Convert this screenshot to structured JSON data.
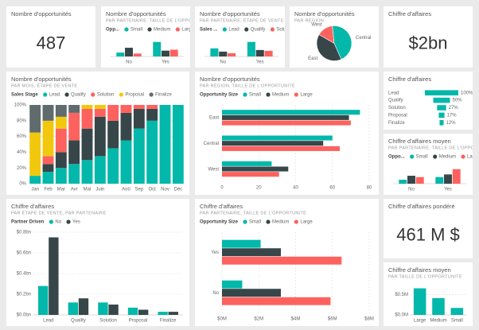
{
  "chart_data": [
    {
      "type": "card",
      "title": "Nombre d'opportunités",
      "value": 487
    },
    {
      "type": "bar",
      "title": "Nombre d'opportunités",
      "subtitle": "PAR PARTENAIRE, TAILLE DE L'OPPORTUNITÉ",
      "legend_title": "Opp...",
      "categories": [
        "No",
        "Yes"
      ],
      "series": [
        {
          "name": "Small",
          "color": "#01b8aa",
          "values": [
            8,
            30
          ]
        },
        {
          "name": "Medium",
          "color": "#374649",
          "values": [
            18,
            12
          ]
        },
        {
          "name": "Large",
          "color": "#fd625e",
          "values": [
            6,
            14
          ]
        }
      ]
    },
    {
      "type": "bar",
      "title": "Nombre d'opportunités",
      "subtitle": "PAR PARTENAIRE, ÉTAPE DE VENTE",
      "legend_title": "Sales ...",
      "categories": [
        "No",
        "Yes"
      ],
      "series": [
        {
          "name": "Lead",
          "color": "#01b8aa",
          "values": [
            10,
            18
          ]
        },
        {
          "name": "Qualify",
          "color": "#374649",
          "values": [
            6,
            8
          ]
        },
        {
          "name": "Solution",
          "color": "#fd625e",
          "values": [
            4,
            7
          ]
        }
      ]
    },
    {
      "type": "pie",
      "title": "Nombre d'opportunités",
      "subtitle": "PAR RÉGION",
      "categories": [
        "West",
        "Central",
        "East"
      ],
      "values": [
        15,
        45,
        40
      ],
      "colors": [
        "#fd625e",
        "#01b8aa",
        "#374649"
      ]
    },
    {
      "type": "card",
      "title": "Chiffre d'affaires",
      "value": 2,
      "value_label": "$2bn"
    },
    {
      "type": "stacked",
      "title": "Nombre d'opportunités",
      "subtitle": "PAR MOIS, ÉTAPE DE VENTE",
      "legend_title": "Sales Stage",
      "categories": [
        "Jan",
        "Feb",
        "Mar",
        "Avr",
        "Mai",
        "Juin",
        null,
        "Aoû",
        "Sep",
        "Oct",
        "Nov",
        "Déc"
      ],
      "series": [
        {
          "name": "Lead",
          "color": "#01b8aa",
          "values": [
            10,
            15,
            20,
            25,
            30,
            35,
            45,
            55,
            70,
            80,
            100,
            100
          ]
        },
        {
          "name": "Qualify",
          "color": "#374649",
          "values": [
            0,
            10,
            20,
            30,
            40,
            50,
            35,
            35,
            25,
            15,
            0,
            0
          ]
        },
        {
          "name": "Solution",
          "color": "#fd625e",
          "values": [
            0,
            10,
            30,
            35,
            25,
            10,
            20,
            10,
            5,
            5,
            0,
            0
          ]
        },
        {
          "name": "Proposal",
          "color": "#f2c80f",
          "values": [
            55,
            45,
            15,
            0,
            5,
            5,
            0,
            0,
            0,
            0,
            0,
            0
          ]
        },
        {
          "name": "Finalize",
          "color": "#5f6b6d",
          "values": [
            35,
            20,
            15,
            10,
            0,
            0,
            0,
            0,
            0,
            0,
            0,
            0
          ]
        }
      ],
      "ylim": [
        0,
        100
      ],
      "yticks": [
        {
          "value": 0,
          "label": "0%"
        },
        {
          "value": 20,
          "label": "20%"
        },
        {
          "value": 40,
          "label": "40%"
        },
        {
          "value": 60,
          "label": "60%"
        },
        {
          "value": 80,
          "label": "80%"
        },
        {
          "value": 100,
          "label": "100%"
        }
      ]
    },
    {
      "type": "hbar",
      "title": "Nombre d'opportunités",
      "subtitle": "PAR RÉGION, TAILLE DE L'OPPORTUNITÉ",
      "legend_title": "Opportunity Size",
      "categories": [
        "East",
        "Central",
        "West"
      ],
      "series": [
        {
          "name": "Small",
          "color": "#01b8aa",
          "values": [
            75,
            60,
            27
          ]
        },
        {
          "name": "Medium",
          "color": "#374649",
          "values": [
            69,
            55,
            36
          ]
        },
        {
          "name": "Large",
          "color": "#fd625e",
          "values": [
            70,
            64,
            31
          ]
        }
      ],
      "xlim": [
        0,
        80
      ],
      "xticks": [
        0,
        20,
        40,
        60,
        80
      ]
    },
    {
      "type": "funnel",
      "title": "Chiffre d'affaires",
      "categories": [
        "Lead",
        "Qualify",
        "Solution",
        "Proposal",
        "Finalize"
      ],
      "values": [
        100,
        50,
        27,
        17,
        12
      ],
      "value_labels": [
        "100%",
        "50%",
        "27%",
        "17%",
        "12%"
      ],
      "color": "#01b8aa"
    },
    {
      "type": "bar",
      "title": "Chiffre d'affaires moyen",
      "subtitle": "PAR PARTENAIRE, TAILLE DE L'OPPORTUNITÉ",
      "legend_title": "Oppo...",
      "categories": [
        "No",
        "Yes"
      ],
      "series": [
        {
          "name": "Small",
          "color": "#01b8aa",
          "values": [
            6,
            10
          ]
        },
        {
          "name": "Medium",
          "color": "#374649",
          "values": [
            12,
            14
          ]
        },
        {
          "name": "Large",
          "color": "#fd625e",
          "values": [
            10,
            22
          ]
        }
      ]
    },
    {
      "type": "bar",
      "title": "Chiffre d'affaires",
      "subtitle": "PAR ÉTAPE DE VENTE, PAR PARTENAIRE",
      "legend_title": "Partner Driven",
      "categories": [
        "Lead",
        "Qualify",
        "Solution",
        "Proposal",
        "Finalize"
      ],
      "series": [
        {
          "name": "No",
          "color": "#01b8aa",
          "values": [
            0.28,
            0.12,
            0.12,
            0.07,
            0.03
          ]
        },
        {
          "name": "Yes",
          "color": "#374649",
          "values": [
            0.75,
            0.16,
            0.1,
            0.05,
            0.03
          ]
        }
      ],
      "ylim": [
        0,
        0.8
      ],
      "yticks": [
        {
          "value": 0,
          "label": "$0.0bn"
        },
        {
          "value": 0.2,
          "label": "$0.2bn"
        },
        {
          "value": 0.4,
          "label": "$0.4bn"
        },
        {
          "value": 0.6,
          "label": "$0.6bn"
        },
        {
          "value": 0.8,
          "label": "$0.8bn"
        }
      ]
    },
    {
      "type": "hbar",
      "title": "Chiffre d'affaires",
      "subtitle": "PAR PARTENAIRE, TAILLE DE L'OPPORTUNITÉ",
      "legend_title": "Opportunity Size",
      "categories": [
        "Yes",
        "No"
      ],
      "series": [
        {
          "name": "Small",
          "color": "#01b8aa",
          "values": [
            2.1,
            1.1
          ]
        },
        {
          "name": "Medium",
          "color": "#374649",
          "values": [
            3.2,
            3.2
          ]
        },
        {
          "name": "Large",
          "color": "#fd625e",
          "values": [
            6.5,
            5.9
          ]
        }
      ],
      "xlim": [
        0,
        8
      ],
      "xticks": [
        {
          "value": 0,
          "label": "$0M"
        },
        {
          "value": 2,
          "label": "$2M"
        },
        {
          "value": 4,
          "label": "$4M"
        },
        {
          "value": 6,
          "label": "$6M"
        },
        {
          "value": 8,
          "label": "$8M"
        }
      ]
    },
    {
      "type": "card",
      "title": "Chiffre d'affaires pondéré",
      "value": 461,
      "value_label": "461 M $"
    },
    {
      "type": "bar",
      "title": "Chiffre d'affaires moyen",
      "subtitle": "PAR TAILLE DE L'OPPORTUNITÉ",
      "categories": [
        "Large",
        "Medium",
        "Small"
      ],
      "values": [
        0.65,
        0.41,
        0.17
      ],
      "color": "#01b8aa",
      "ylim": [
        0,
        0.7
      ],
      "yticks": [
        {
          "value": 0,
          "label": "$0.0M"
        },
        {
          "value": 0.5,
          "label": "$0.5M"
        }
      ]
    }
  ]
}
